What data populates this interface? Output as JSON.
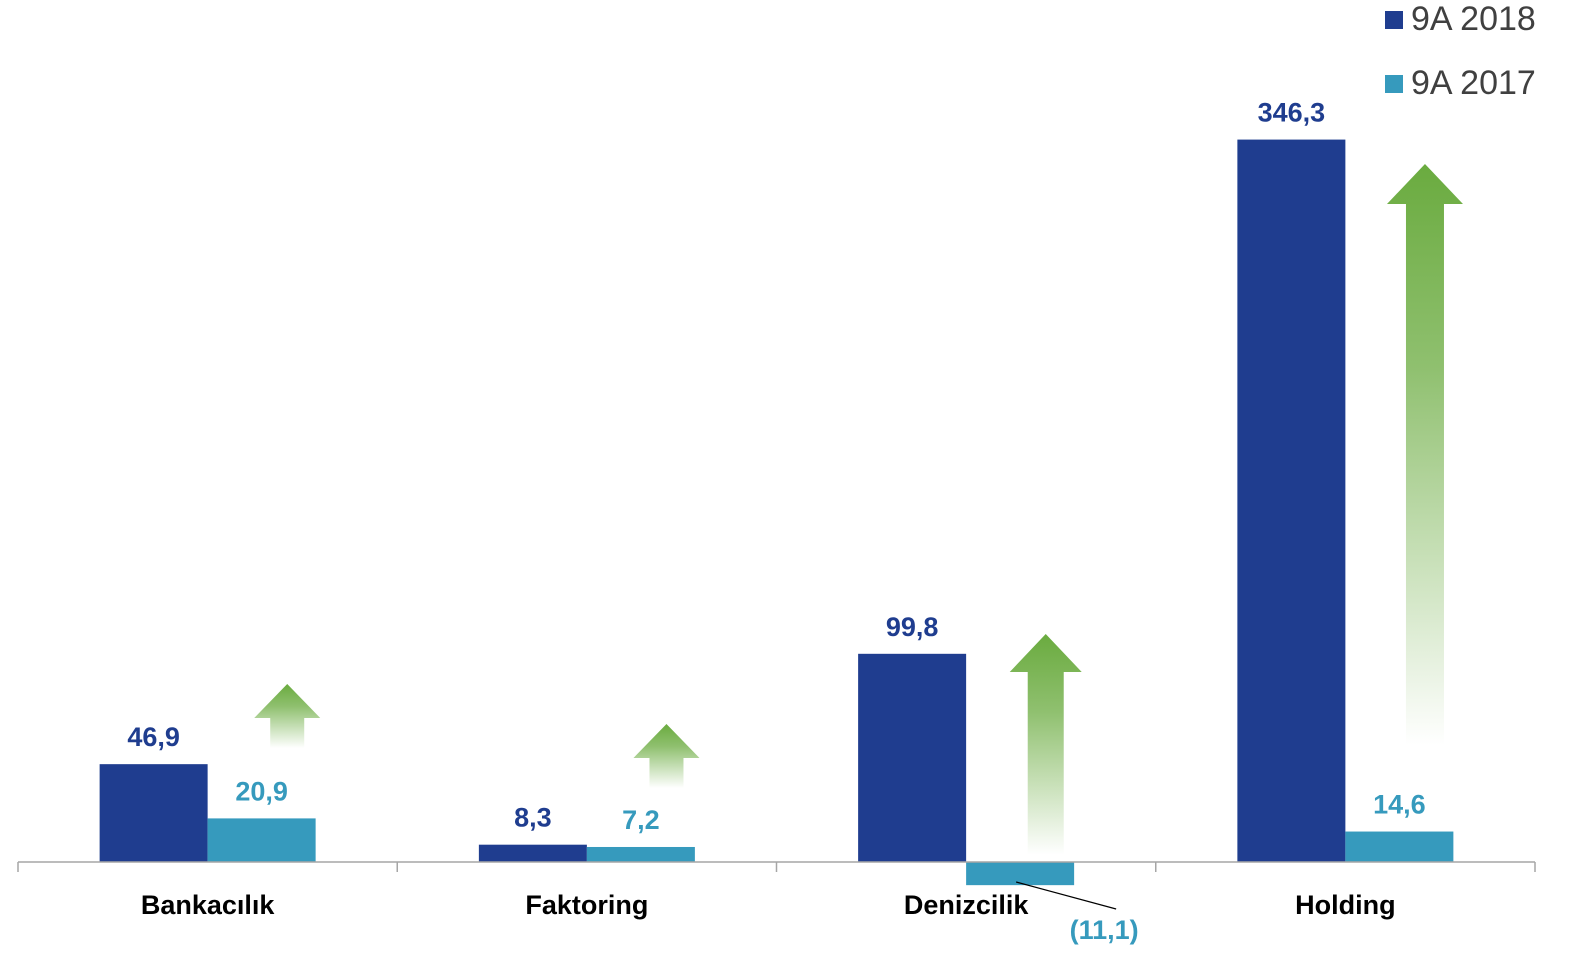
{
  "chart_data": {
    "type": "bar",
    "categories": [
      "Bankacılık",
      "Faktoring",
      "Denizcilik",
      "Holding"
    ],
    "series": [
      {
        "name": "9A 2018",
        "values": [
          46.9,
          8.3,
          99.8,
          346.3
        ],
        "labels": [
          "46,9",
          "8,3",
          "99,8",
          "346,3"
        ],
        "color": "#1f3d8f"
      },
      {
        "name": "9A 2017",
        "values": [
          20.9,
          7.2,
          -11.1,
          14.6
        ],
        "labels": [
          "20,9",
          "7,2",
          "(11,1)",
          "14,6"
        ],
        "color": "#369abd"
      }
    ],
    "increase_arrows": [
      true,
      true,
      true,
      true
    ],
    "arrow_color": "#6aab3f",
    "legend_position": "top-right",
    "grid": false,
    "title": "",
    "xlabel": "",
    "ylabel": ""
  }
}
